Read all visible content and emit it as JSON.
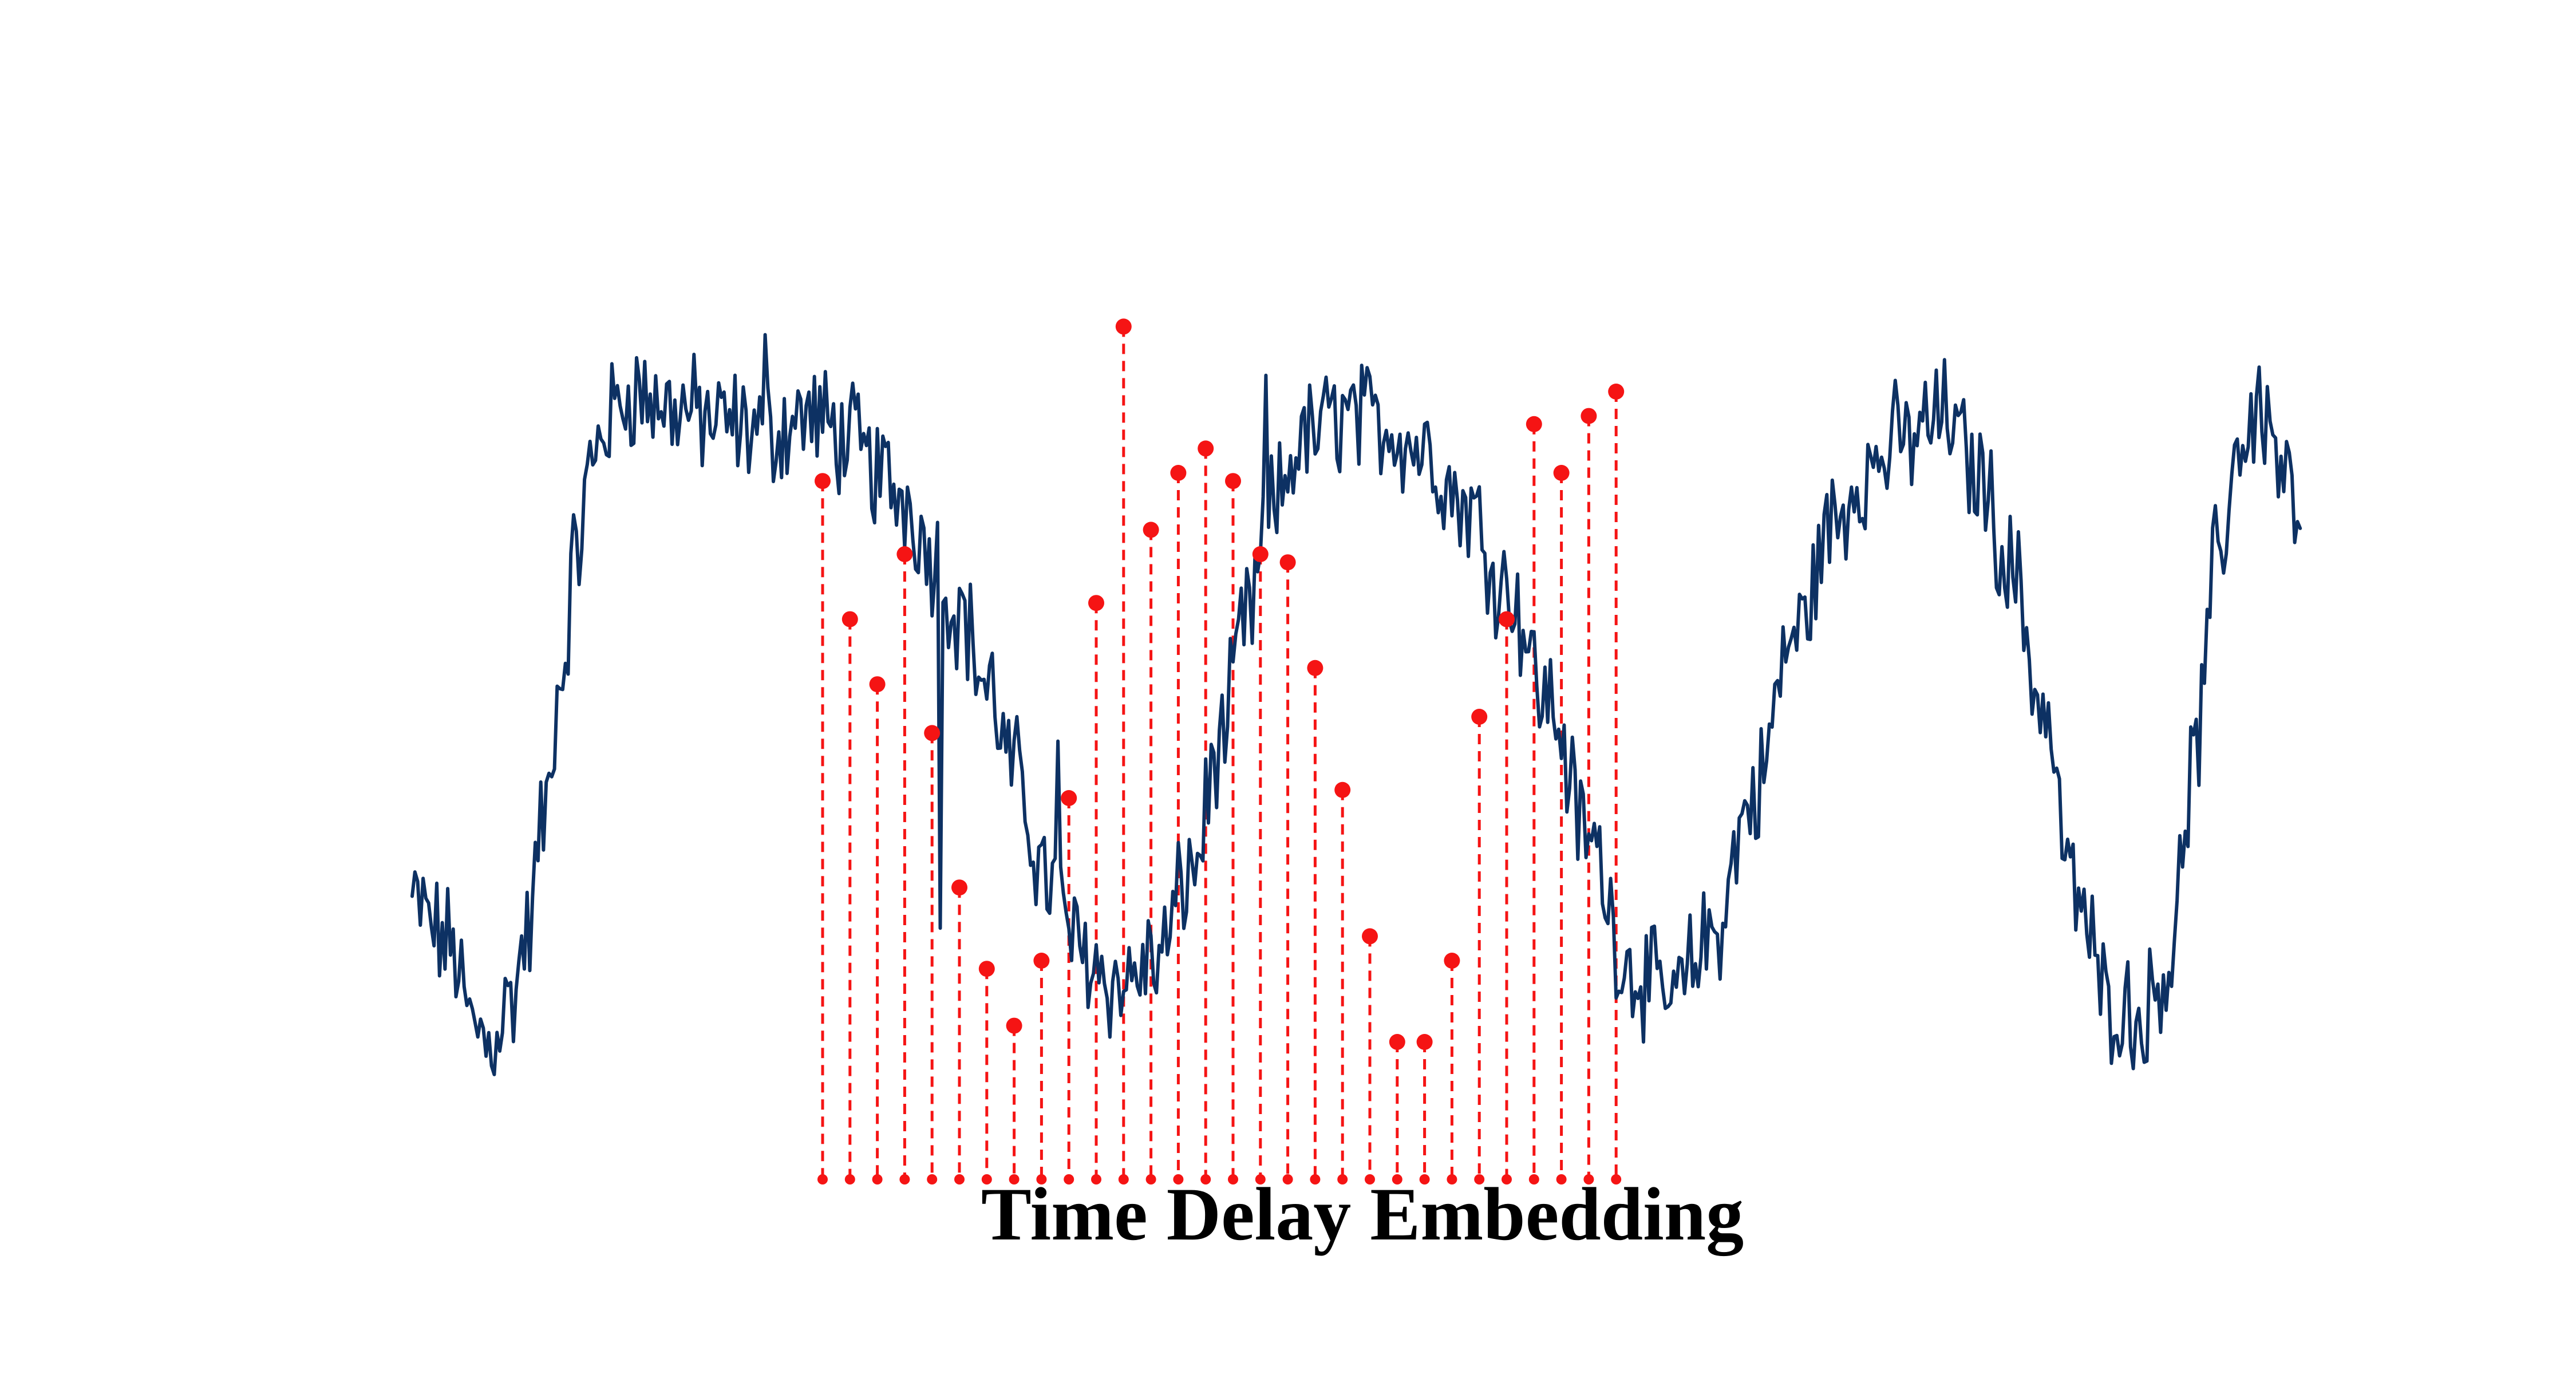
{
  "caption": "Time Delay Embedding",
  "colors": {
    "series_line": "#0d3163",
    "sample_marker": "#f51414",
    "drop_line": "#f51414",
    "background": "#ffffff"
  },
  "chart_data": {
    "type": "line",
    "title": "",
    "xlabel": "",
    "ylabel": "",
    "axes_visible": false,
    "grid": false,
    "xlim": [
      0,
      660
    ],
    "ylim": [
      0,
      1
    ],
    "series": [
      {
        "role": "time-series",
        "keypoints": [
          [
            0,
            0.17
          ],
          [
            14,
            0.12
          ],
          [
            22,
            0.02
          ],
          [
            28,
            0.0
          ],
          [
            36,
            0.05
          ],
          [
            42,
            0.13
          ],
          [
            48,
            0.27
          ],
          [
            54,
            0.44
          ],
          [
            60,
            0.6
          ],
          [
            65,
            0.7
          ],
          [
            70,
            0.76
          ],
          [
            80,
            0.8
          ],
          [
            95,
            0.78
          ],
          [
            115,
            0.76
          ],
          [
            130,
            0.75
          ],
          [
            145,
            0.77
          ],
          [
            160,
            0.74
          ],
          [
            170,
            0.7
          ],
          [
            180,
            0.67
          ],
          [
            190,
            0.6
          ],
          [
            200,
            0.53
          ],
          [
            210,
            0.44
          ],
          [
            220,
            0.33
          ],
          [
            232,
            0.2
          ],
          [
            245,
            0.11
          ],
          [
            258,
            0.07
          ],
          [
            272,
            0.1
          ],
          [
            285,
            0.21
          ],
          [
            295,
            0.36
          ],
          [
            305,
            0.52
          ],
          [
            315,
            0.66
          ],
          [
            325,
            0.74
          ],
          [
            340,
            0.77
          ],
          [
            355,
            0.76
          ],
          [
            370,
            0.73
          ],
          [
            385,
            0.66
          ],
          [
            400,
            0.56
          ],
          [
            415,
            0.42
          ],
          [
            430,
            0.25
          ],
          [
            445,
            0.09
          ],
          [
            460,
            0.05
          ],
          [
            475,
            0.13
          ],
          [
            490,
            0.3
          ],
          [
            505,
            0.5
          ],
          [
            520,
            0.64
          ],
          [
            530,
            0.7
          ],
          [
            545,
            0.74
          ],
          [
            560,
            0.77
          ],
          [
            572,
            0.7
          ],
          [
            585,
            0.58
          ],
          [
            595,
            0.42
          ],
          [
            608,
            0.18
          ],
          [
            620,
            0.05
          ],
          [
            632,
            0.03
          ],
          [
            642,
            0.1
          ],
          [
            652,
            0.36
          ],
          [
            660,
            0.6
          ],
          [
            668,
            0.74
          ],
          [
            676,
            0.78
          ],
          [
            684,
            0.7
          ],
          [
            690,
            0.62
          ]
        ],
        "noise_amplitude": 0.06,
        "spikes": [
          [
            129,
            0.87
          ],
          [
            193,
            0.14
          ],
          [
            236,
            0.37
          ],
          [
            312,
            0.82
          ]
        ]
      }
    ],
    "samples": {
      "x": [
        150,
        160,
        170,
        180,
        190,
        200,
        210,
        220,
        230,
        240,
        250,
        260,
        270,
        280,
        290,
        300,
        310,
        320,
        330,
        340,
        350,
        360,
        370,
        380,
        390,
        400,
        410,
        420,
        430,
        440
      ],
      "y": [
        0.69,
        0.52,
        0.44,
        0.6,
        0.38,
        0.19,
        0.09,
        0.02,
        0.1,
        0.3,
        0.54,
        0.88,
        0.63,
        0.7,
        0.73,
        0.69,
        0.6,
        0.59,
        0.46,
        0.31,
        0.13,
        0.0,
        0.0,
        0.1,
        0.4,
        0.52,
        0.76,
        0.7,
        0.77,
        0.8
      ],
      "drop_to": "baseline",
      "marker": "circle"
    }
  }
}
